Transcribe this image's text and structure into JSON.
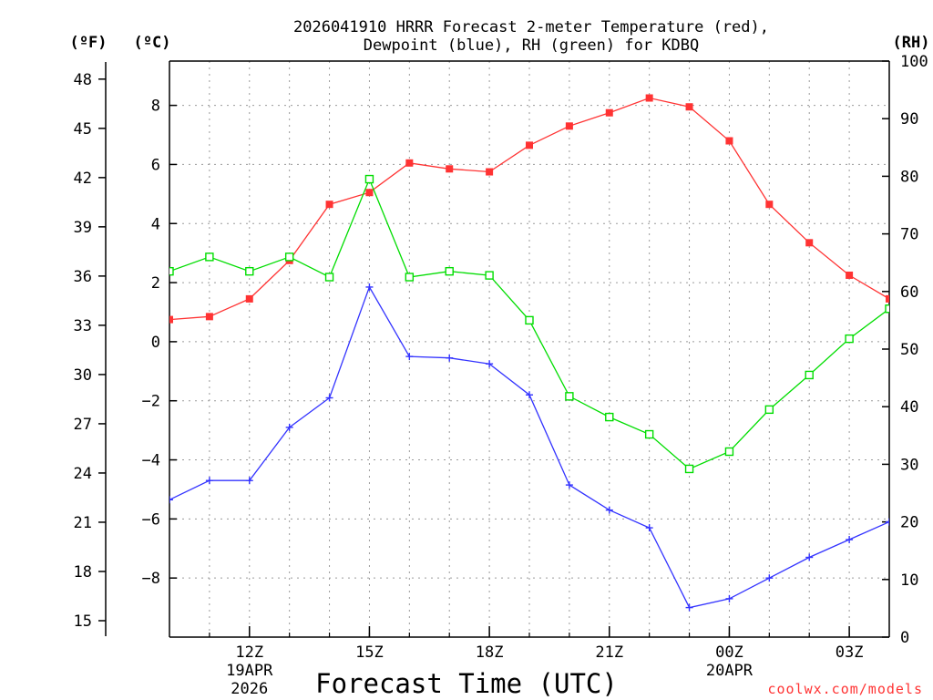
{
  "chart_data": {
    "type": "line",
    "title_line1": "2026041910 HRRR Forecast 2-meter Temperature (red),",
    "title_line2": "Dewpoint (blue), RH (green) for KDBQ",
    "xlabel": "Forecast Time (UTC)",
    "unit_f": "(ºF)",
    "unit_c": "(ºC)",
    "unit_rh": "(RH)",
    "credit": "coolwx.com/models",
    "x_range_hours": [
      10,
      28
    ],
    "celsius_range": [
      -10,
      9.5
    ],
    "rh_range": [
      0,
      100
    ],
    "x_ticks": [
      {
        "hour": 12,
        "label": "12Z",
        "sub1": "19APR",
        "sub2": "2026"
      },
      {
        "hour": 15,
        "label": "15Z",
        "sub1": "",
        "sub2": ""
      },
      {
        "hour": 18,
        "label": "18Z",
        "sub1": "",
        "sub2": ""
      },
      {
        "hour": 21,
        "label": "21Z",
        "sub1": "",
        "sub2": ""
      },
      {
        "hour": 24,
        "label": "00Z",
        "sub1": "20APR",
        "sub2": ""
      },
      {
        "hour": 27,
        "label": "03Z",
        "sub1": "",
        "sub2": ""
      }
    ],
    "celsius_ticks": [
      8,
      6,
      4,
      2,
      0,
      -2,
      -4,
      -6,
      -8
    ],
    "fahrenheit_ticks": [
      48,
      45,
      42,
      39,
      36,
      33,
      30,
      27,
      24,
      21,
      18,
      15
    ],
    "rh_ticks": [
      100,
      90,
      80,
      70,
      60,
      50,
      40,
      30,
      20,
      10,
      0
    ],
    "hours": [
      10,
      11,
      12,
      13,
      14,
      15,
      16,
      17,
      18,
      19,
      20,
      21,
      22,
      23,
      24,
      25,
      26,
      27,
      28
    ],
    "series": [
      {
        "name": "Temperature",
        "unit": "C",
        "color": "#ff3333",
        "values": [
          0.75,
          0.85,
          1.45,
          2.75,
          4.65,
          5.05,
          6.05,
          5.85,
          5.75,
          6.65,
          7.3,
          7.75,
          8.25,
          7.95,
          6.8,
          4.65,
          3.35,
          2.25,
          1.45
        ]
      },
      {
        "name": "Dewpoint",
        "unit": "C",
        "color": "#3333ff",
        "values": [
          -5.35,
          -4.7,
          -4.7,
          -2.9,
          -1.9,
          1.85,
          -0.5,
          -0.55,
          -0.75,
          -1.8,
          -4.85,
          -5.7,
          -6.3,
          -9.0,
          -8.7,
          -8.0,
          -7.3,
          -6.7,
          -6.1
        ]
      },
      {
        "name": "RH",
        "unit": "%",
        "color": "#00dd00",
        "values": [
          63.5,
          66.0,
          63.5,
          66.0,
          62.5,
          79.5,
          62.5,
          63.5,
          62.8,
          55.0,
          41.8,
          38.2,
          35.2,
          29.2,
          32.2,
          39.5,
          45.5,
          51.8,
          57.0
        ]
      }
    ]
  }
}
